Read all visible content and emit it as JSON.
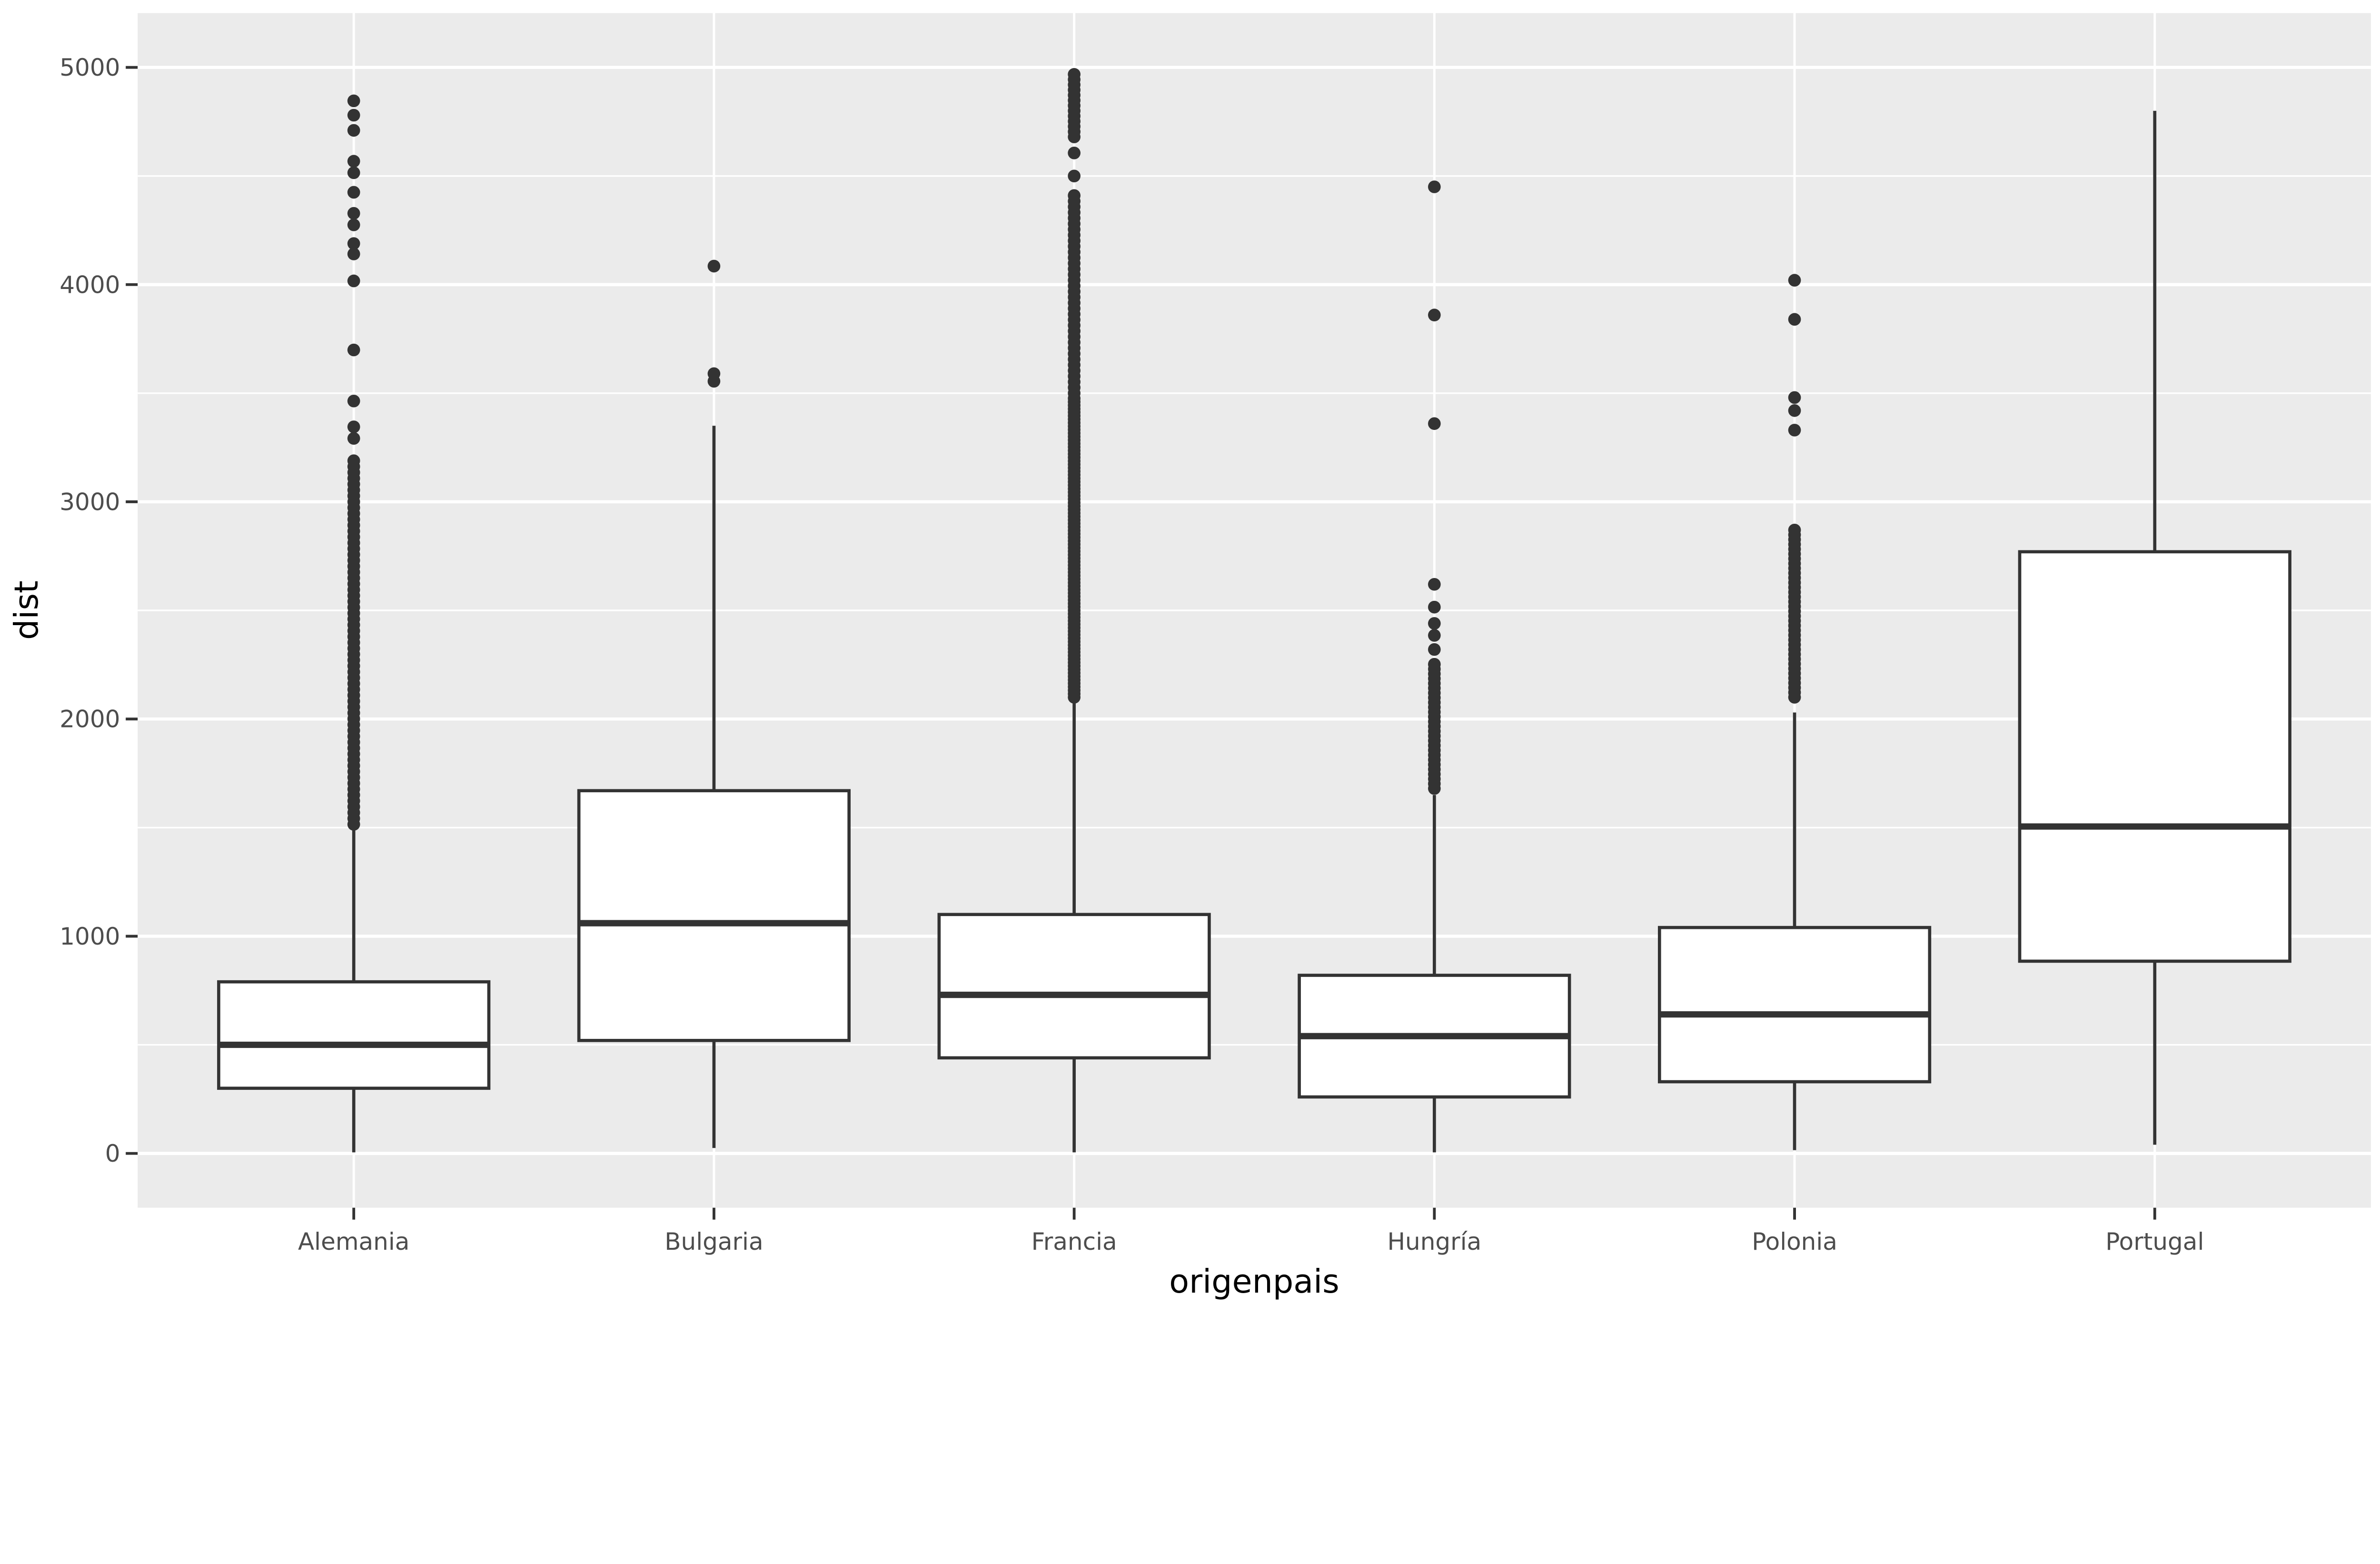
{
  "chart_data": {
    "type": "boxplot",
    "title": "",
    "xlabel": "origenpais",
    "ylabel": "dist",
    "categories": [
      "Alemania",
      "Bulgaria",
      "Francia",
      "Hungría",
      "Polonia",
      "Portugal"
    ],
    "y_ticks": [
      0,
      1000,
      2000,
      3000,
      4000,
      5000
    ],
    "y_minor_ticks": [
      500,
      1500,
      2500,
      3500,
      4500
    ],
    "ylim": [
      -250,
      5250
    ],
    "grid": true,
    "legend_position": "none",
    "series": [
      {
        "label": "Alemania",
        "q1": 300,
        "median": 500,
        "q3": 790,
        "whisker_low": 5,
        "whisker_high": 1500,
        "outlier_runs": [
          {
            "from": 1515,
            "to": 3210,
            "step": 27
          }
        ],
        "outliers": [
          3292,
          3345,
          3464,
          3699,
          4017,
          4141,
          4189,
          4275,
          4328,
          4425,
          4515,
          4568,
          4710,
          4780,
          4846
        ]
      },
      {
        "label": "Bulgaria",
        "q1": 520,
        "median": 1060,
        "q3": 1670,
        "whisker_low": 25,
        "whisker_high": 3350,
        "outlier_runs": [],
        "outliers": [
          3555,
          3590,
          4085
        ]
      },
      {
        "label": "Francia",
        "q1": 440,
        "median": 730,
        "q3": 1100,
        "whisker_low": 5,
        "whisker_high": 2090,
        "outlier_runs": [
          {
            "from": 2100,
            "to": 3480,
            "step": 16
          },
          {
            "from": 3500,
            "to": 4420,
            "step": 26
          },
          {
            "from": 4680,
            "to": 4990,
            "step": 24
          }
        ],
        "outliers": [
          4500,
          4606
        ]
      },
      {
        "label": "Hungría",
        "q1": 260,
        "median": 540,
        "q3": 820,
        "whisker_low": 5,
        "whisker_high": 1650,
        "outlier_runs": [
          {
            "from": 1680,
            "to": 2270,
            "step": 22
          }
        ],
        "outliers": [
          2320,
          2385,
          2440,
          2515,
          2620,
          3360,
          3860,
          4450
        ]
      },
      {
        "label": "Polonia",
        "q1": 330,
        "median": 640,
        "q3": 1040,
        "whisker_low": 15,
        "whisker_high": 2030,
        "outlier_runs": [
          {
            "from": 2100,
            "to": 2870,
            "step": 22
          }
        ],
        "outliers": [
          3330,
          3420,
          3480,
          3840,
          4020
        ]
      },
      {
        "label": "Portugal",
        "q1": 885,
        "median": 1505,
        "q3": 2770,
        "whisker_low": 40,
        "whisker_high": 4800,
        "outlier_runs": [],
        "outliers": []
      }
    ],
    "colors": {
      "panel_background": "#EBEBEB",
      "grid_major": "#FFFFFF",
      "grid_minor": "#FFFFFF",
      "box_stroke": "#333333",
      "box_fill": "#FFFFFF",
      "median_stroke": "#333333",
      "outlier_fill": "#333333",
      "tick_mark": "#333333",
      "tick_label": "#4D4D4D",
      "axis_title": "#000000"
    }
  }
}
